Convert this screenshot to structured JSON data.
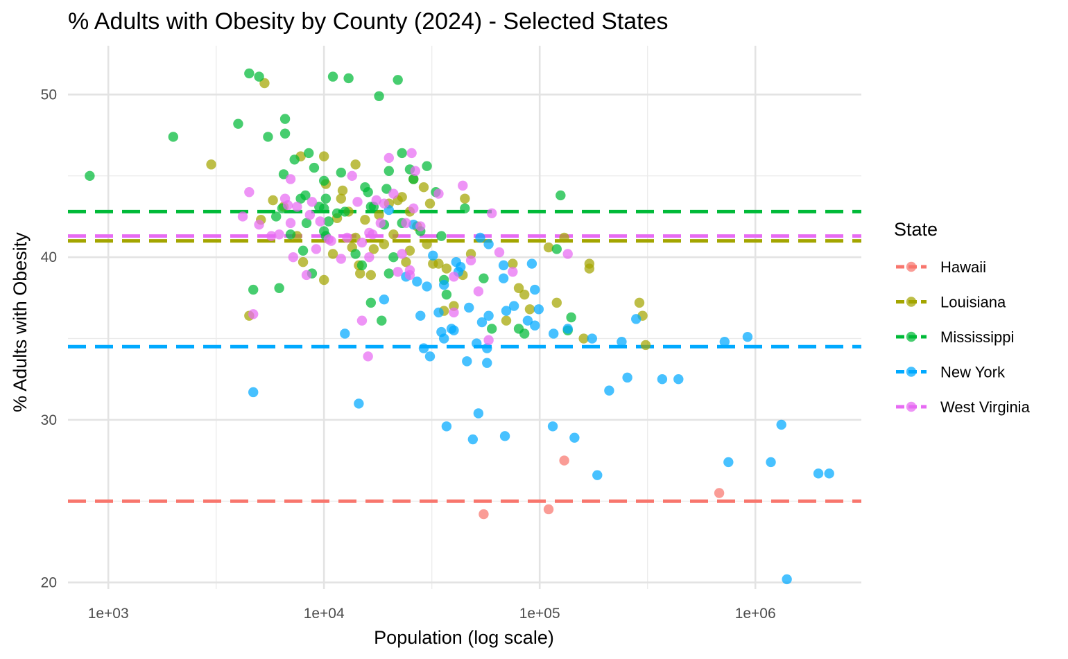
{
  "chart_data": {
    "type": "scatter",
    "title": "% Adults with Obesity by County (2024) - Selected States",
    "xlabel": "Population (log scale)",
    "ylabel": "% Adults with Obesity",
    "x_scale": "log10",
    "xlim": [
      650,
      3100000
    ],
    "ylim": [
      19.6,
      53.0
    ],
    "x_ticks": [
      1000,
      10000,
      100000,
      1000000
    ],
    "x_tick_labels": [
      "1e+03",
      "1e+04",
      "1e+05",
      "1e+06"
    ],
    "y_ticks": [
      20,
      30,
      40,
      50
    ],
    "y_tick_labels": [
      "20",
      "30",
      "40",
      "50"
    ],
    "grid": true,
    "legend": {
      "title": "State",
      "position": "right"
    },
    "series": [
      {
        "name": "Hawaii",
        "color": "#F8766D",
        "mean": 25.0,
        "points": [
          [
            55000,
            24.2
          ],
          [
            110000,
            24.5
          ],
          [
            130000,
            27.5
          ],
          [
            680000,
            25.5
          ]
        ]
      },
      {
        "name": "Louisiana",
        "color": "#A3A500",
        "mean": 41.0,
        "points": [
          [
            3000,
            45.7
          ],
          [
            4500,
            36.4
          ],
          [
            5100,
            42.3
          ],
          [
            5300,
            50.7
          ],
          [
            5800,
            43.5
          ],
          [
            6500,
            43.1
          ],
          [
            7500,
            41.3
          ],
          [
            7800,
            46.2
          ],
          [
            8000,
            39.7
          ],
          [
            10000,
            46.2
          ],
          [
            10000,
            38.6
          ],
          [
            10200,
            44.5
          ],
          [
            11000,
            40.2
          ],
          [
            11500,
            42.4
          ],
          [
            12000,
            43.6
          ],
          [
            12200,
            44.1
          ],
          [
            13000,
            42.8
          ],
          [
            13500,
            40.6
          ],
          [
            14000,
            45.7
          ],
          [
            14000,
            41.2
          ],
          [
            14500,
            39.5
          ],
          [
            14700,
            39.0
          ],
          [
            15500,
            42.3
          ],
          [
            16500,
            38.9
          ],
          [
            17000,
            40.5
          ],
          [
            18000,
            42.6
          ],
          [
            19000,
            40.8
          ],
          [
            20000,
            43.3
          ],
          [
            21000,
            41.4
          ],
          [
            22000,
            43.5
          ],
          [
            23000,
            43.7
          ],
          [
            24000,
            39.7
          ],
          [
            25000,
            40.4
          ],
          [
            25000,
            42.8
          ],
          [
            26000,
            44.8
          ],
          [
            27000,
            41.9
          ],
          [
            29000,
            44.3
          ],
          [
            30000,
            40.8
          ],
          [
            31000,
            43.3
          ],
          [
            32000,
            39.6
          ],
          [
            34000,
            39.6
          ],
          [
            36000,
            36.7
          ],
          [
            37000,
            39.3
          ],
          [
            40000,
            37.0
          ],
          [
            44000,
            38.9
          ],
          [
            45000,
            43.6
          ],
          [
            48000,
            40.2
          ],
          [
            70000,
            36.1
          ],
          [
            75000,
            39.6
          ],
          [
            80000,
            38.1
          ],
          [
            85000,
            37.7
          ],
          [
            90000,
            36.8
          ],
          [
            110000,
            40.6
          ],
          [
            120000,
            37.2
          ],
          [
            130000,
            41.2
          ],
          [
            160000,
            35.0
          ],
          [
            170000,
            39.6
          ],
          [
            170000,
            39.3
          ],
          [
            290000,
            37.2
          ],
          [
            300000,
            36.4
          ],
          [
            310000,
            34.6
          ]
        ]
      },
      {
        "name": "Mississippi",
        "color": "#00BA38",
        "mean": 42.8,
        "points": [
          [
            820,
            45.0
          ],
          [
            2000,
            47.4
          ],
          [
            4000,
            48.2
          ],
          [
            4500,
            51.3
          ],
          [
            4700,
            38.0
          ],
          [
            5000,
            51.1
          ],
          [
            5500,
            47.4
          ],
          [
            6000,
            42.5
          ],
          [
            6200,
            38.1
          ],
          [
            6400,
            43.0
          ],
          [
            6500,
            45.1
          ],
          [
            6600,
            47.6
          ],
          [
            6600,
            48.5
          ],
          [
            7000,
            41.4
          ],
          [
            7300,
            46.0
          ],
          [
            7800,
            43.6
          ],
          [
            8000,
            40.4
          ],
          [
            8200,
            43.8
          ],
          [
            8300,
            42.1
          ],
          [
            8500,
            46.4
          ],
          [
            8800,
            39.0
          ],
          [
            9000,
            45.5
          ],
          [
            9500,
            43.1
          ],
          [
            10000,
            44.7
          ],
          [
            10000,
            43.0
          ],
          [
            10000,
            41.6
          ],
          [
            10200,
            41.3
          ],
          [
            10200,
            43.6
          ],
          [
            10500,
            42.2
          ],
          [
            11000,
            51.1
          ],
          [
            11500,
            42.7
          ],
          [
            12000,
            45.2
          ],
          [
            12500,
            42.8
          ],
          [
            13000,
            51.0
          ],
          [
            14000,
            40.2
          ],
          [
            15000,
            39.5
          ],
          [
            15500,
            44.3
          ],
          [
            16000,
            44.0
          ],
          [
            16500,
            43.1
          ],
          [
            16500,
            37.2
          ],
          [
            17000,
            43.1
          ],
          [
            18000,
            49.9
          ],
          [
            18500,
            36.1
          ],
          [
            19000,
            42.0
          ],
          [
            19500,
            44.2
          ],
          [
            20000,
            39.0
          ],
          [
            20000,
            45.3
          ],
          [
            21000,
            40.0
          ],
          [
            22000,
            50.9
          ],
          [
            23000,
            42.1
          ],
          [
            23000,
            46.4
          ],
          [
            25000,
            45.4
          ],
          [
            26000,
            44.8
          ],
          [
            28000,
            41.6
          ],
          [
            30000,
            45.6
          ],
          [
            33000,
            44.0
          ],
          [
            35000,
            41.3
          ],
          [
            36000,
            38.6
          ],
          [
            37000,
            37.7
          ],
          [
            45000,
            43.0
          ],
          [
            55000,
            38.7
          ],
          [
            60000,
            35.6
          ],
          [
            80000,
            35.6
          ],
          [
            85000,
            35.3
          ],
          [
            120000,
            40.5
          ],
          [
            125000,
            43.8
          ],
          [
            135000,
            35.5
          ],
          [
            140000,
            36.3
          ]
        ]
      },
      {
        "name": "New York",
        "color": "#00A9FF",
        "mean": 34.5,
        "points": [
          [
            4700,
            31.7
          ],
          [
            12500,
            35.3
          ],
          [
            14500,
            31.0
          ],
          [
            19000,
            37.4
          ],
          [
            20000,
            42.9
          ],
          [
            24000,
            38.8
          ],
          [
            26000,
            42.0
          ],
          [
            27000,
            38.5
          ],
          [
            28000,
            36.4
          ],
          [
            29000,
            34.4
          ],
          [
            30000,
            38.2
          ],
          [
            31000,
            33.9
          ],
          [
            32000,
            40.1
          ],
          [
            34000,
            36.6
          ],
          [
            35000,
            35.4
          ],
          [
            36000,
            38.3
          ],
          [
            36000,
            35.0
          ],
          [
            37000,
            29.6
          ],
          [
            39000,
            35.6
          ],
          [
            40000,
            35.5
          ],
          [
            41000,
            39.7
          ],
          [
            42000,
            39.1
          ],
          [
            43000,
            39.4
          ],
          [
            46000,
            33.6
          ],
          [
            47000,
            36.9
          ],
          [
            49000,
            28.8
          ],
          [
            51000,
            34.7
          ],
          [
            52000,
            30.4
          ],
          [
            53000,
            41.2
          ],
          [
            54000,
            36.0
          ],
          [
            57000,
            34.4
          ],
          [
            57000,
            33.5
          ],
          [
            58000,
            36.4
          ],
          [
            58000,
            40.8
          ],
          [
            68000,
            39.5
          ],
          [
            68000,
            38.7
          ],
          [
            69000,
            29.0
          ],
          [
            70000,
            36.7
          ],
          [
            76000,
            37.0
          ],
          [
            88000,
            36.1
          ],
          [
            92000,
            39.6
          ],
          [
            95000,
            35.8
          ],
          [
            95000,
            38.0
          ],
          [
            99000,
            36.8
          ],
          [
            115000,
            29.6
          ],
          [
            116000,
            35.3
          ],
          [
            135000,
            35.6
          ],
          [
            145000,
            28.9
          ],
          [
            175000,
            35.0
          ],
          [
            185000,
            26.6
          ],
          [
            210000,
            31.8
          ],
          [
            240000,
            34.8
          ],
          [
            255000,
            32.6
          ],
          [
            280000,
            36.2
          ],
          [
            370000,
            32.5
          ],
          [
            440000,
            32.5
          ],
          [
            720000,
            34.8
          ],
          [
            750000,
            27.4
          ],
          [
            920000,
            35.1
          ],
          [
            1180000,
            27.4
          ],
          [
            1320000,
            29.7
          ],
          [
            1400000,
            20.2
          ],
          [
            1960000,
            26.7
          ],
          [
            2200000,
            26.7
          ]
        ]
      },
      {
        "name": "West Virginia",
        "color": "#E76BF3",
        "mean": 41.3,
        "points": [
          [
            4200,
            42.5
          ],
          [
            4500,
            44.0
          ],
          [
            4700,
            36.5
          ],
          [
            5000,
            42.0
          ],
          [
            5700,
            41.3
          ],
          [
            6200,
            41.4
          ],
          [
            6600,
            43.6
          ],
          [
            6800,
            43.2
          ],
          [
            7000,
            44.8
          ],
          [
            7000,
            42.1
          ],
          [
            7200,
            40.0
          ],
          [
            7500,
            43.1
          ],
          [
            8300,
            38.9
          ],
          [
            8600,
            42.6
          ],
          [
            8800,
            43.4
          ],
          [
            9200,
            40.5
          ],
          [
            9600,
            42.2
          ],
          [
            10500,
            41.1
          ],
          [
            10800,
            41.0
          ],
          [
            12000,
            39.9
          ],
          [
            12800,
            41.2
          ],
          [
            13500,
            45.0
          ],
          [
            14300,
            43.4
          ],
          [
            15000,
            36.1
          ],
          [
            15000,
            40.9
          ],
          [
            16000,
            33.9
          ],
          [
            16200,
            41.5
          ],
          [
            16200,
            40.0
          ],
          [
            16800,
            41.4
          ],
          [
            17500,
            43.5
          ],
          [
            18300,
            42.1
          ],
          [
            19000,
            43.3
          ],
          [
            20000,
            46.1
          ],
          [
            21000,
            43.9
          ],
          [
            22000,
            39.1
          ],
          [
            23000,
            40.2
          ],
          [
            24000,
            42.1
          ],
          [
            25000,
            39.2
          ],
          [
            25000,
            38.9
          ],
          [
            25500,
            46.4
          ],
          [
            26000,
            43.0
          ],
          [
            26500,
            45.3
          ],
          [
            28000,
            41.9
          ],
          [
            34000,
            43.9
          ],
          [
            40000,
            36.6
          ],
          [
            40000,
            38.8
          ],
          [
            44000,
            44.4
          ],
          [
            48000,
            39.8
          ],
          [
            52000,
            37.9
          ],
          [
            58000,
            34.9
          ],
          [
            60000,
            42.7
          ],
          [
            65000,
            40.3
          ],
          [
            75000,
            39.1
          ],
          [
            135000,
            40.2
          ]
        ]
      }
    ]
  }
}
